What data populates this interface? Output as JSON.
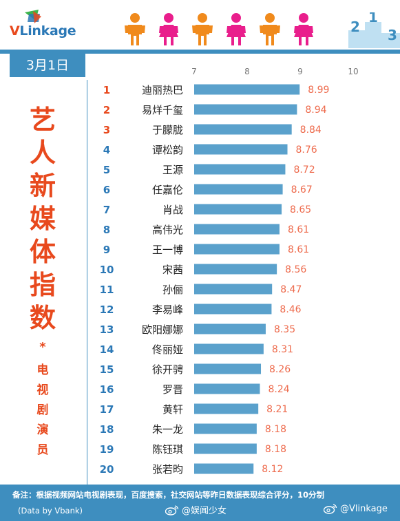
{
  "header": {
    "logo_v": "V",
    "logo_rest": "Linkage",
    "podium_numbers": [
      "2",
      "1",
      "3"
    ]
  },
  "date_label": "3月1日",
  "title": {
    "main": "艺人新媒体指数",
    "star": "*",
    "sub": "电视剧演员"
  },
  "colors": {
    "bar": "#5aa1cc",
    "rank": "#e8491d",
    "rank_alt": "#2b78b6",
    "value": "#ee6b4d",
    "accent_blue": "#3e8ebf",
    "orange": "#f08a1c",
    "pink": "#e91e8c"
  },
  "chart_data": {
    "type": "bar",
    "orientation": "horizontal",
    "xlim": [
      7,
      10
    ],
    "xticks": [
      7,
      8,
      9,
      10
    ],
    "grid": false,
    "categories": [
      "迪丽热巴",
      "易烊千玺",
      "于朦胧",
      "谭松韵",
      "王源",
      "任嘉伦",
      "肖战",
      "高伟光",
      "王一博",
      "宋茜",
      "孙俪",
      "李易峰",
      "欧阳娜娜",
      "佟丽娅",
      "徐开骋",
      "罗晋",
      "黄轩",
      "朱一龙",
      "陈钰琪",
      "张若昀"
    ],
    "ranks": [
      "1",
      "2",
      "3",
      "4",
      "5",
      "6",
      "7",
      "8",
      "9",
      "10",
      "11",
      "12",
      "13",
      "14",
      "15",
      "16",
      "17",
      "18",
      "19",
      "20"
    ],
    "values": [
      8.99,
      8.94,
      8.84,
      8.76,
      8.72,
      8.67,
      8.65,
      8.61,
      8.61,
      8.56,
      8.47,
      8.46,
      8.35,
      8.31,
      8.26,
      8.24,
      8.21,
      8.18,
      8.18,
      8.12
    ],
    "value_labels": [
      "8.99",
      "8.94",
      "8.84",
      "8.76",
      "8.72",
      "8.67",
      "8.65",
      "8.61",
      "8.61",
      "8.56",
      "8.47",
      "8.46",
      "8.35",
      "8.31",
      "8.26",
      "8.24",
      "8.21",
      "8.18",
      "8.18",
      "8.12"
    ]
  },
  "footer": {
    "note": "备注：根据视频网站电视剧表现，百度搜索，社交网站等昨日数据表现综合评分，10分制",
    "credit": "(Data by Vbank)",
    "weibo_1": "@娱闻少女",
    "weibo_2": "@Vlinkage"
  }
}
